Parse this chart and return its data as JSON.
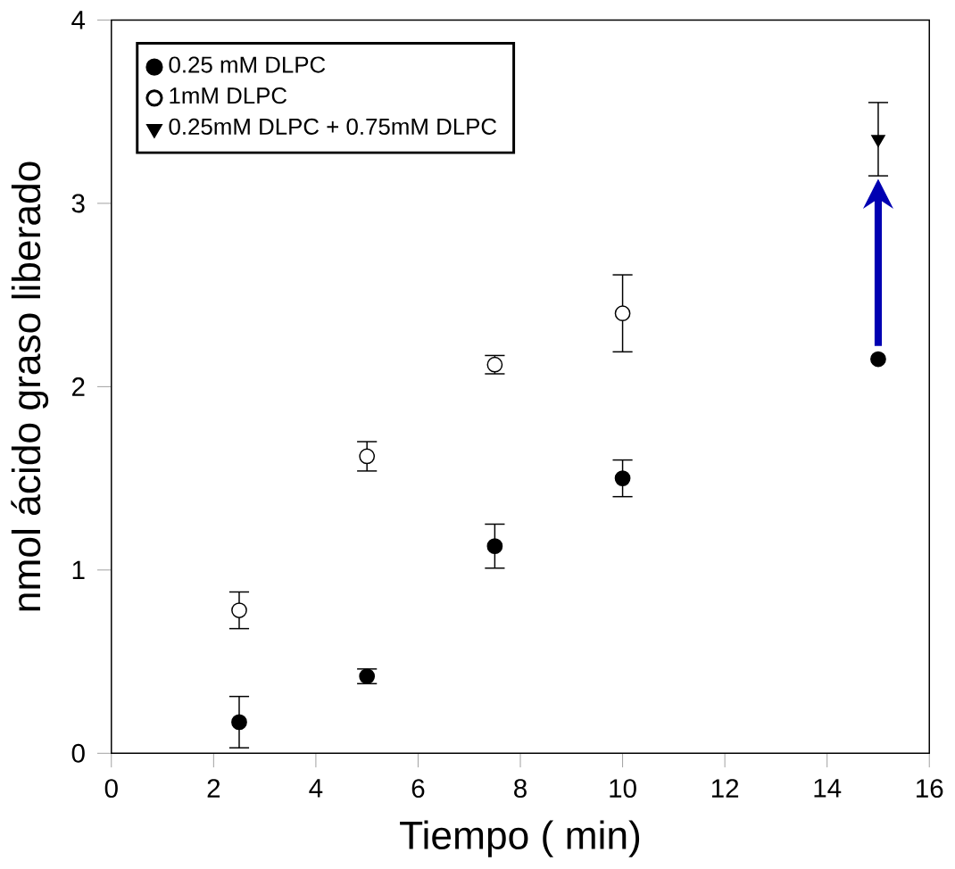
{
  "chart_data": {
    "type": "scatter",
    "xlabel": "Tiempo ( min)",
    "ylabel": "nmol ácido graso liberado",
    "xlim": [
      0,
      16
    ],
    "ylim": [
      0,
      4
    ],
    "xticks": [
      0,
      2,
      4,
      6,
      8,
      10,
      12,
      14,
      16
    ],
    "yticks": [
      0,
      1,
      2,
      3,
      4
    ],
    "legend": "top left",
    "grid": false,
    "series": [
      {
        "name": "0.25 mM DLPC",
        "color": "#000000",
        "marker": "circle",
        "x": [
          2.5,
          5,
          7.5,
          10,
          15
        ],
        "values": [
          0.17,
          0.42,
          1.13,
          1.5,
          2.15
        ],
        "errors": [
          0.14,
          0.04,
          0.12,
          0.1,
          null
        ]
      },
      {
        "name": "1mM DLPC",
        "color": "#000000",
        "marker": "circle open",
        "x": [
          2.5,
          5,
          7.5,
          10
        ],
        "values": [
          0.78,
          1.62,
          2.12,
          2.4
        ],
        "errors": [
          0.1,
          0.08,
          0.05,
          0.21
        ]
      },
      {
        "name": "0.25mM DLPC + 0.75mM DLPC",
        "color": "#000000",
        "marker": "triangle down",
        "x": [
          15
        ],
        "values": [
          3.35
        ],
        "errors": [
          0.2
        ]
      }
    ]
  }
}
